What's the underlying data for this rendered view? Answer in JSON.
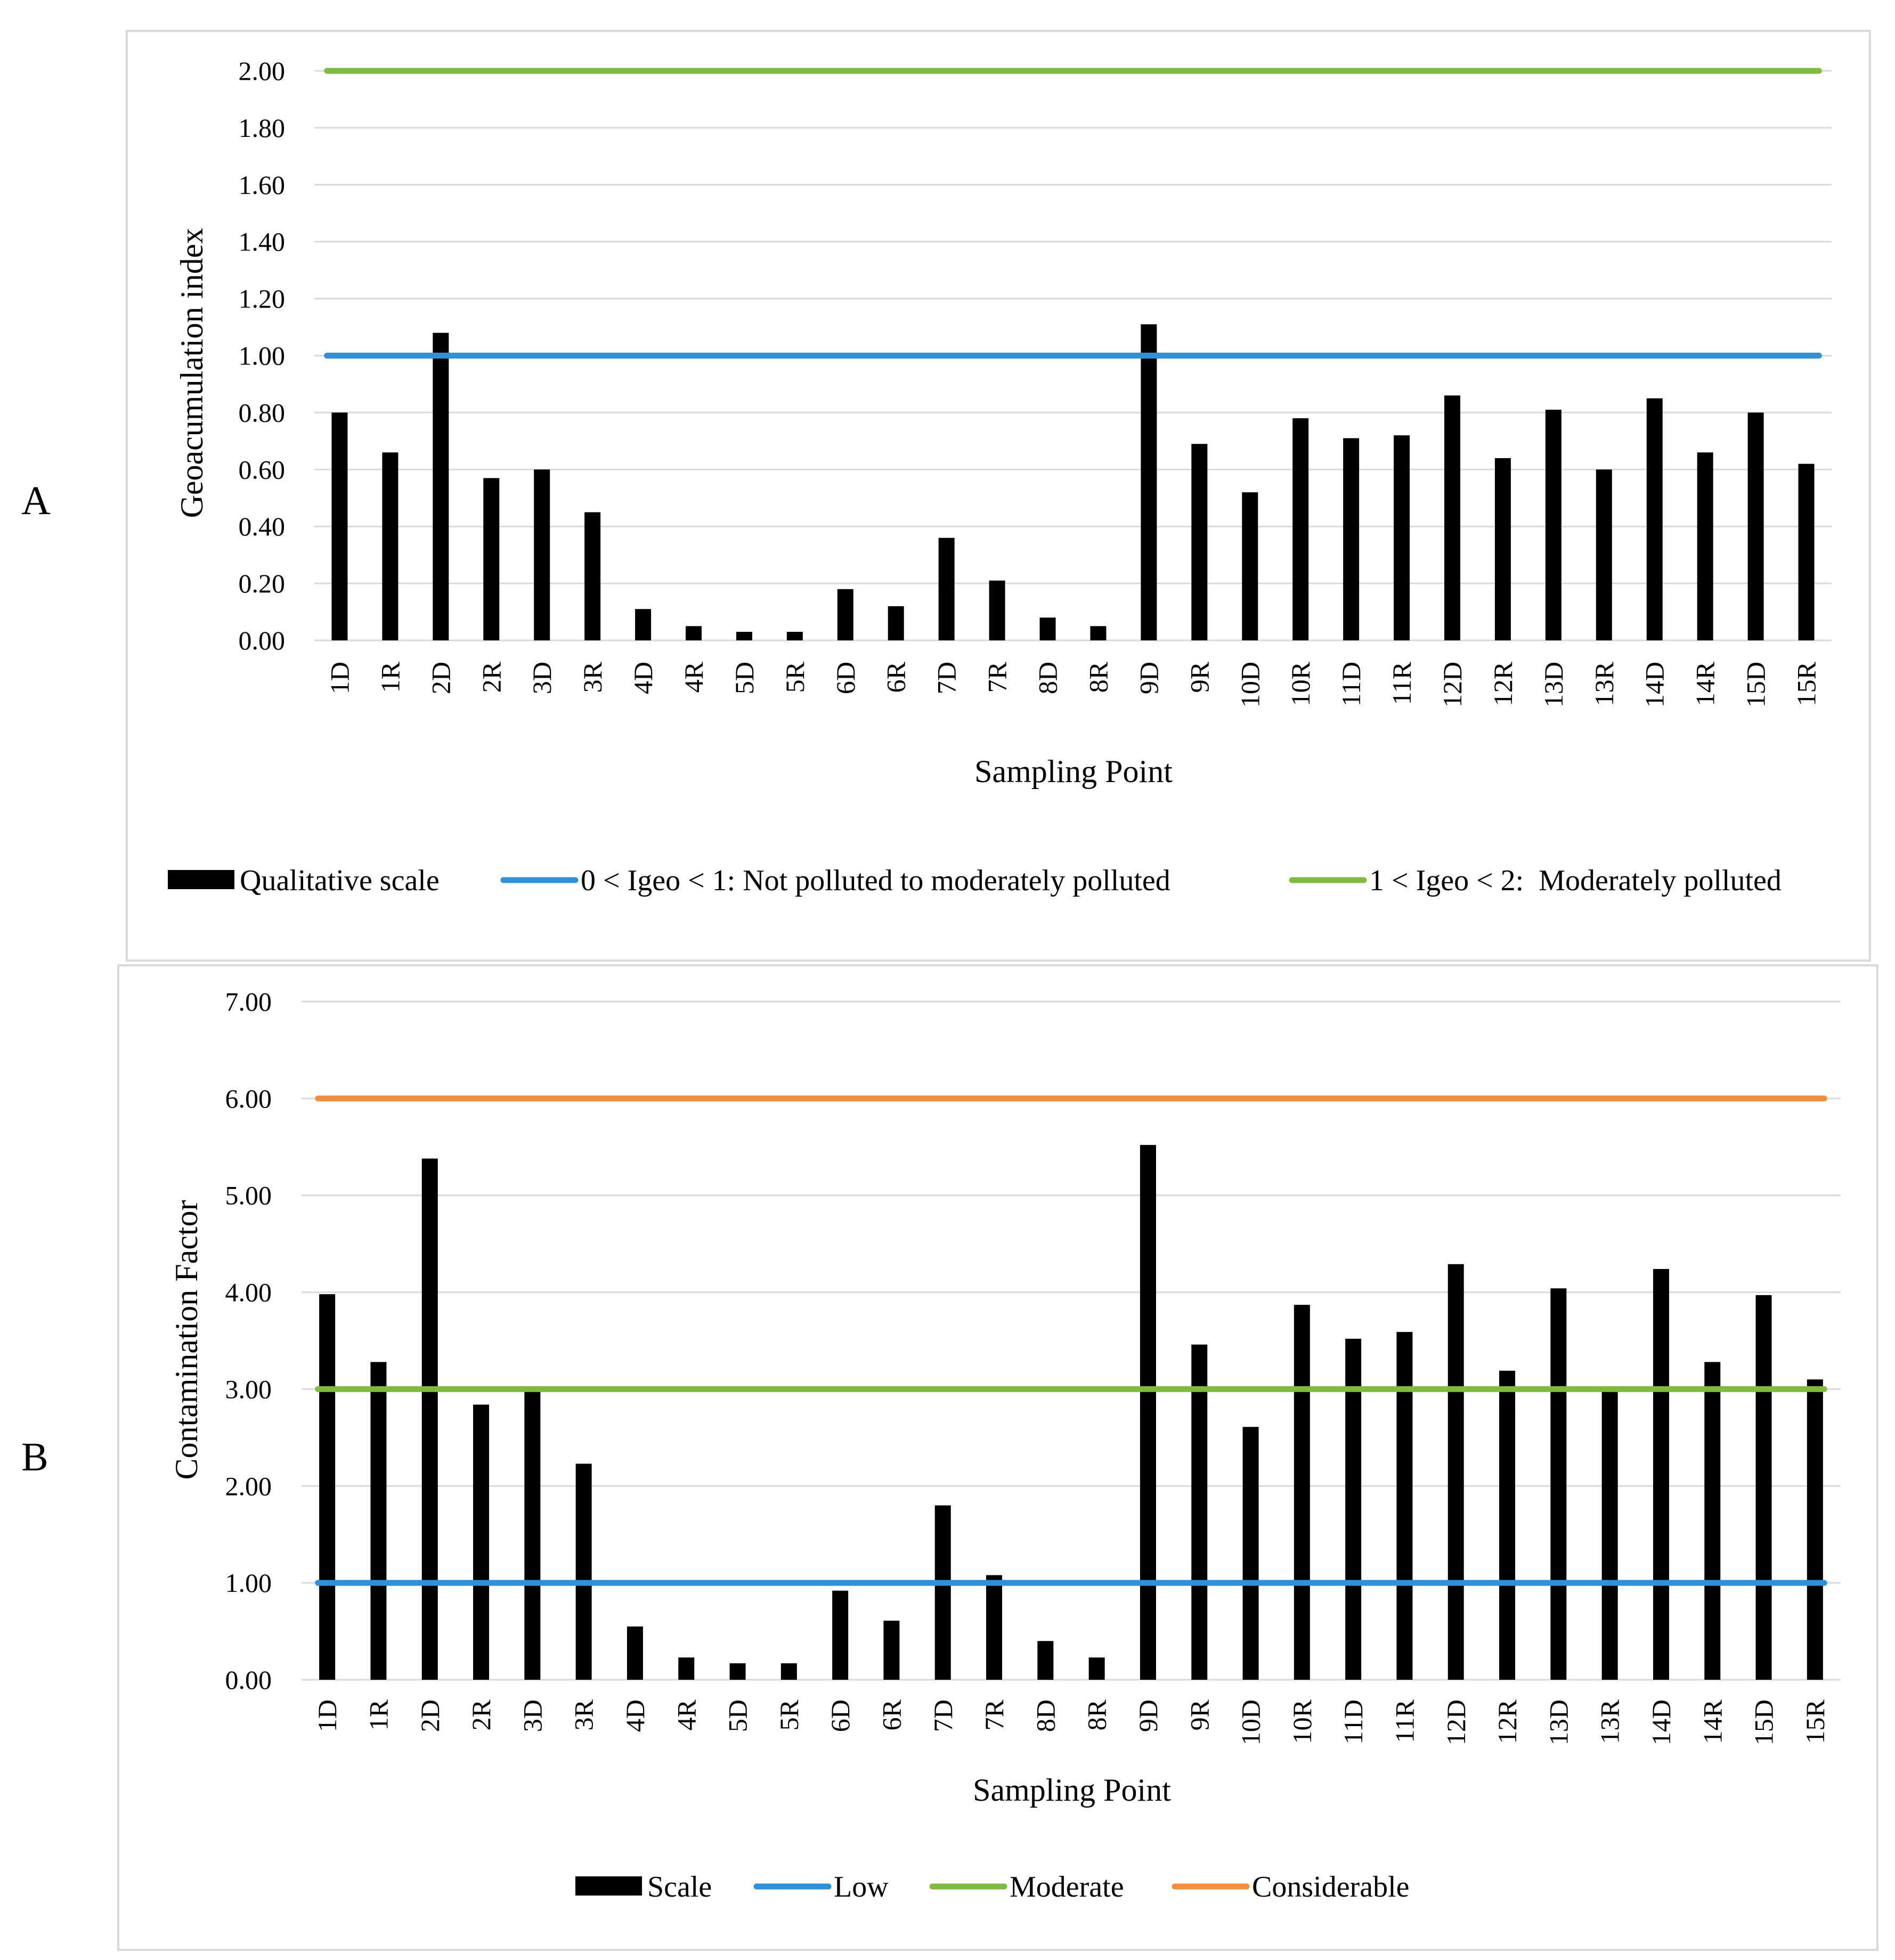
{
  "panels": {
    "a": {
      "letter": "A"
    },
    "b": {
      "letter": "B"
    }
  },
  "chart_data": [
    {
      "type": "bar",
      "panel": "A",
      "ylabel": "Geoacumulation index",
      "xlabel": "Sampling Point",
      "ylim": [
        0,
        2
      ],
      "yticks": [
        "0.00",
        "0.20",
        "0.40",
        "0.60",
        "0.80",
        "1.00",
        "1.20",
        "1.40",
        "1.60",
        "1.80",
        "2.00"
      ],
      "categories": [
        "1D",
        "1R",
        "2D",
        "2R",
        "3D",
        "3R",
        "4D",
        "4R",
        "5D",
        "5R",
        "6D",
        "6R",
        "7D",
        "7R",
        "8D",
        "8R",
        "9D",
        "9R",
        "10D",
        "10R",
        "11D",
        "11R",
        "12D",
        "12R",
        "13D",
        "13R",
        "14D",
        "14R",
        "15D",
        "15R"
      ],
      "series": [
        {
          "name": "Qualitative scale",
          "kind": "bar",
          "color": "#000000",
          "values": [
            0.8,
            0.66,
            1.08,
            0.57,
            0.6,
            0.45,
            0.11,
            0.05,
            0.03,
            0.03,
            0.18,
            0.12,
            0.36,
            0.21,
            0.08,
            0.05,
            1.11,
            0.69,
            0.52,
            0.78,
            0.71,
            0.72,
            0.86,
            0.64,
            0.81,
            0.6,
            0.85,
            0.66,
            0.8,
            0.62
          ]
        },
        {
          "name": "0 < Igeo < 1: Not polluted to moderately polluted",
          "kind": "line",
          "color": "#2f8fd8",
          "value": 1.0
        },
        {
          "name": "1 < Igeo < 2:  Moderately polluted",
          "kind": "line",
          "color": "#7fba42",
          "value": 2.0
        }
      ],
      "grid": true,
      "legend": "bottom"
    },
    {
      "type": "bar",
      "panel": "B",
      "ylabel": "Contamination Factor",
      "xlabel": "Sampling Point",
      "ylim": [
        0,
        7
      ],
      "yticks": [
        "0.00",
        "1.00",
        "2.00",
        "3.00",
        "4.00",
        "5.00",
        "6.00",
        "7.00"
      ],
      "categories": [
        "1D",
        "1R",
        "2D",
        "2R",
        "3D",
        "3R",
        "4D",
        "4R",
        "5D",
        "5R",
        "6D",
        "6R",
        "7D",
        "7R",
        "8D",
        "8R",
        "9D",
        "9R",
        "10D",
        "10R",
        "11D",
        "11R",
        "12D",
        "12R",
        "13D",
        "13R",
        "14D",
        "14R",
        "15D",
        "15R"
      ],
      "series": [
        {
          "name": "Scale",
          "kind": "bar",
          "color": "#000000",
          "values": [
            3.98,
            3.28,
            5.38,
            2.84,
            3.02,
            2.23,
            0.55,
            0.23,
            0.17,
            0.17,
            0.92,
            0.61,
            1.8,
            1.08,
            0.4,
            0.23,
            5.52,
            3.46,
            2.61,
            3.87,
            3.52,
            3.59,
            4.29,
            3.19,
            4.04,
            3.0,
            4.24,
            3.28,
            3.97,
            3.1
          ]
        },
        {
          "name": "Low",
          "kind": "line",
          "color": "#2f8fd8",
          "value": 1.0
        },
        {
          "name": "Moderate",
          "kind": "line",
          "color": "#7fba42",
          "value": 3.0
        },
        {
          "name": "Considerable",
          "kind": "line",
          "color": "#f28e3c",
          "value": 6.0
        }
      ],
      "grid": true,
      "legend": "bottom"
    }
  ]
}
